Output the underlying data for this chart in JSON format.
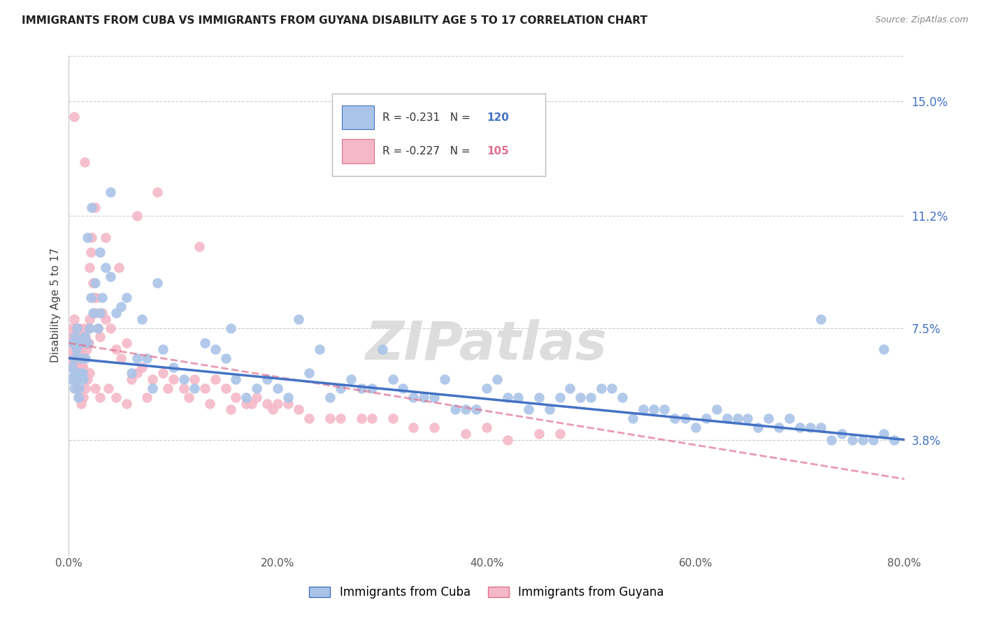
{
  "title": "IMMIGRANTS FROM CUBA VS IMMIGRANTS FROM GUYANA DISABILITY AGE 5 TO 17 CORRELATION CHART",
  "source": "Source: ZipAtlas.com",
  "ylabel": "Disability Age 5 to 17",
  "right_yticks": [
    3.8,
    7.5,
    11.2,
    15.0
  ],
  "right_ytick_labels": [
    "3.8%",
    "7.5%",
    "11.2%",
    "15.0%"
  ],
  "xlim": [
    0.0,
    80.0
  ],
  "ylim": [
    0.0,
    16.5
  ],
  "cuba_color": "#aac4e8",
  "cuba_line_color": "#4472c4",
  "guyana_color": "#f4b8c8",
  "guyana_line_color": "#e07090",
  "cuba_R": -0.231,
  "cuba_N": 120,
  "guyana_R": -0.227,
  "guyana_N": 105,
  "watermark": "ZIPatlas",
  "legend_label_cuba": "Immigrants from Cuba",
  "legend_label_guyana": "Immigrants from Guyana",
  "cuba_scatter_x": [
    0.2,
    0.3,
    0.4,
    0.5,
    0.5,
    0.6,
    0.6,
    0.7,
    0.8,
    0.8,
    0.9,
    1.0,
    1.0,
    1.1,
    1.2,
    1.3,
    1.4,
    1.5,
    1.6,
    1.8,
    2.0,
    2.1,
    2.3,
    2.5,
    2.8,
    3.0,
    3.2,
    3.5,
    4.0,
    4.5,
    5.0,
    5.5,
    6.0,
    6.5,
    7.0,
    7.5,
    8.0,
    9.0,
    10.0,
    11.0,
    12.0,
    13.0,
    14.0,
    15.0,
    16.0,
    17.0,
    18.0,
    19.0,
    20.0,
    21.0,
    22.0,
    23.0,
    24.0,
    25.0,
    26.0,
    27.0,
    28.0,
    29.0,
    30.0,
    31.0,
    32.0,
    33.0,
    34.0,
    35.0,
    36.0,
    37.0,
    38.0,
    39.0,
    40.0,
    41.0,
    42.0,
    43.0,
    44.0,
    45.0,
    46.0,
    47.0,
    48.0,
    49.0,
    50.0,
    51.0,
    52.0,
    53.0,
    54.0,
    55.0,
    56.0,
    57.0,
    58.0,
    59.0,
    60.0,
    61.0,
    62.0,
    63.0,
    64.0,
    65.0,
    66.0,
    67.0,
    68.0,
    69.0,
    70.0,
    71.0,
    72.0,
    73.0,
    74.0,
    75.0,
    76.0,
    77.0,
    78.0,
    79.0,
    1.8,
    2.2,
    3.0,
    4.0,
    8.5,
    15.5,
    72.0,
    78.0
  ],
  "cuba_scatter_y": [
    5.8,
    6.2,
    7.0,
    5.5,
    6.5,
    7.2,
    6.0,
    6.8,
    5.8,
    7.5,
    5.2,
    6.0,
    5.5,
    6.5,
    7.0,
    6.0,
    5.8,
    7.2,
    6.5,
    7.0,
    7.5,
    8.5,
    8.0,
    9.0,
    7.5,
    8.0,
    8.5,
    9.5,
    9.2,
    8.0,
    8.2,
    8.5,
    6.0,
    6.5,
    7.8,
    6.5,
    5.5,
    6.8,
    6.2,
    5.8,
    5.5,
    7.0,
    6.8,
    6.5,
    5.8,
    5.2,
    5.5,
    5.8,
    5.5,
    5.2,
    7.8,
    6.0,
    6.8,
    5.2,
    5.5,
    5.8,
    5.5,
    5.5,
    6.8,
    5.8,
    5.5,
    5.2,
    5.2,
    5.2,
    5.8,
    4.8,
    4.8,
    4.8,
    5.5,
    5.8,
    5.2,
    5.2,
    4.8,
    5.2,
    4.8,
    5.2,
    5.5,
    5.2,
    5.2,
    5.5,
    5.5,
    5.2,
    4.5,
    4.8,
    4.8,
    4.8,
    4.5,
    4.5,
    4.2,
    4.5,
    4.8,
    4.5,
    4.5,
    4.5,
    4.2,
    4.5,
    4.2,
    4.5,
    4.2,
    4.2,
    4.2,
    3.8,
    4.0,
    3.8,
    3.8,
    3.8,
    4.0,
    3.8,
    10.5,
    11.5,
    10.0,
    12.0,
    9.0,
    7.5,
    7.8,
    6.8
  ],
  "guyana_scatter_x": [
    0.1,
    0.2,
    0.3,
    0.3,
    0.4,
    0.4,
    0.5,
    0.5,
    0.6,
    0.7,
    0.7,
    0.8,
    0.8,
    0.9,
    0.9,
    1.0,
    1.0,
    1.0,
    1.1,
    1.1,
    1.2,
    1.2,
    1.3,
    1.3,
    1.4,
    1.4,
    1.5,
    1.5,
    1.6,
    1.7,
    1.8,
    1.9,
    2.0,
    2.0,
    2.1,
    2.2,
    2.3,
    2.4,
    2.5,
    2.6,
    2.8,
    3.0,
    3.2,
    3.5,
    4.0,
    4.5,
    5.0,
    5.5,
    6.0,
    6.5,
    7.0,
    8.0,
    9.0,
    10.0,
    11.0,
    12.0,
    13.0,
    14.0,
    15.0,
    16.0,
    17.0,
    18.0,
    19.0,
    20.0,
    21.0,
    22.0,
    25.0,
    28.0,
    31.0,
    35.0,
    40.0,
    45.0,
    0.6,
    0.8,
    1.0,
    1.2,
    1.4,
    1.6,
    1.8,
    2.0,
    2.5,
    3.0,
    3.8,
    4.5,
    5.5,
    7.5,
    9.5,
    11.5,
    13.5,
    15.5,
    17.5,
    19.5,
    23.0,
    26.0,
    29.0,
    33.0,
    38.0,
    42.0,
    47.0,
    0.5,
    1.5,
    2.5,
    3.5,
    4.8,
    6.5,
    8.5,
    12.5
  ],
  "guyana_scatter_y": [
    7.0,
    6.5,
    6.8,
    7.5,
    6.2,
    7.2,
    6.5,
    7.8,
    6.0,
    6.8,
    7.5,
    6.5,
    7.0,
    6.2,
    7.2,
    6.0,
    7.5,
    6.8,
    6.2,
    7.0,
    6.5,
    7.2,
    6.0,
    6.8,
    7.5,
    6.2,
    6.5,
    7.0,
    7.2,
    6.8,
    7.5,
    7.0,
    7.8,
    9.5,
    10.0,
    10.5,
    9.0,
    8.5,
    8.0,
    8.5,
    7.5,
    7.2,
    8.0,
    7.8,
    7.5,
    6.8,
    6.5,
    7.0,
    5.8,
    6.0,
    6.2,
    5.8,
    6.0,
    5.8,
    5.5,
    5.8,
    5.5,
    5.8,
    5.5,
    5.2,
    5.0,
    5.2,
    5.0,
    5.0,
    5.0,
    4.8,
    4.5,
    4.5,
    4.5,
    4.2,
    4.2,
    4.0,
    5.8,
    5.5,
    5.2,
    5.0,
    5.2,
    5.5,
    5.8,
    6.0,
    5.5,
    5.2,
    5.5,
    5.2,
    5.0,
    5.2,
    5.5,
    5.2,
    5.0,
    4.8,
    5.0,
    4.8,
    4.5,
    4.5,
    4.5,
    4.2,
    4.0,
    3.8,
    4.0,
    14.5,
    13.0,
    11.5,
    10.5,
    9.5,
    11.2,
    12.0,
    10.2
  ]
}
